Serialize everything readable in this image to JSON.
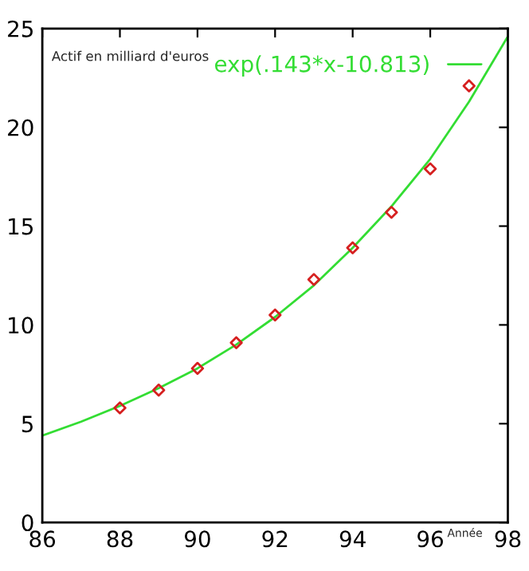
{
  "chart_data": {
    "type": "scatter",
    "ylabel": "Actif en milliard d'euros",
    "xlabel": "Année",
    "xlim": [
      86,
      98
    ],
    "ylim": [
      0,
      25
    ],
    "xticks": [
      86,
      88,
      90,
      92,
      94,
      96,
      98
    ],
    "yticks": [
      0,
      5,
      10,
      15,
      20,
      25
    ],
    "grid": false,
    "legend": "top right",
    "marker": "diamond",
    "series": [
      {
        "color": "#d62020",
        "x": [
          88,
          89,
          90,
          91,
          92,
          93,
          94,
          95,
          96,
          97
        ],
        "values": [
          5.8,
          6.7,
          7.8,
          9.1,
          10.5,
          12.3,
          13.9,
          15.7,
          17.9,
          22.1
        ]
      },
      {
        "type": "line",
        "name": "exp(.143*x-10.813)",
        "color": "#33dd33",
        "marker": "none",
        "line_style": "solid",
        "x": [
          86,
          87,
          88,
          89,
          90,
          91,
          92,
          93,
          94,
          95,
          96,
          97,
          98
        ],
        "values": [
          4.4,
          5.1,
          5.9,
          6.8,
          7.8,
          9.0,
          10.4,
          12.0,
          13.9,
          16.0,
          18.4,
          21.3,
          24.6
        ]
      }
    ]
  }
}
